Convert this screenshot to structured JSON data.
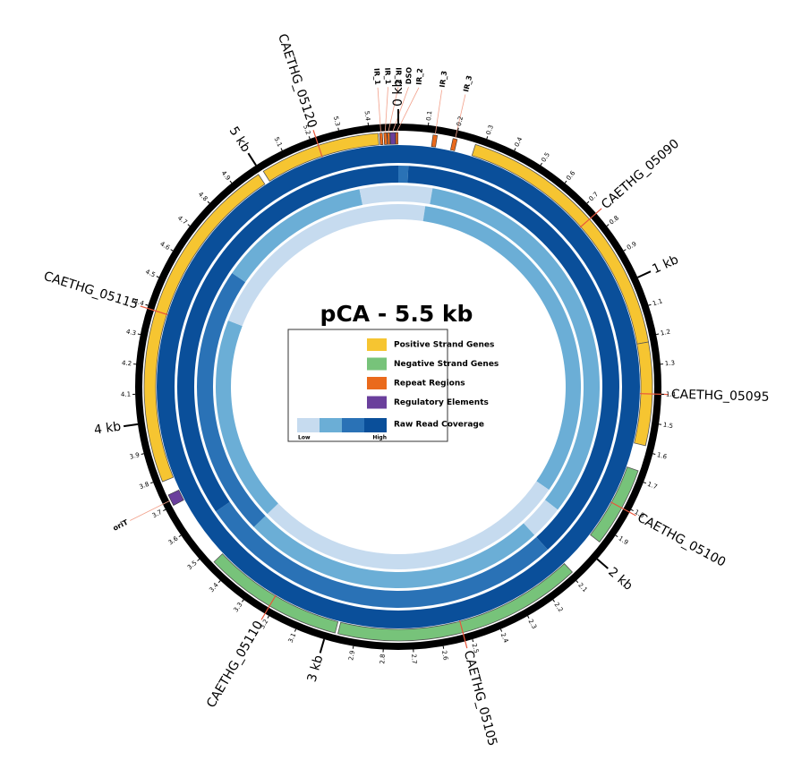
{
  "chart_data": {
    "type": "circular",
    "title": "pCA - 5.5 kb",
    "xlim": [
      0,
      5.5
    ],
    "major_ticks": [
      {
        "value": 0,
        "label": "0 kb"
      },
      {
        "value": 1,
        "label": "1 kb"
      },
      {
        "value": 2,
        "label": "2 kb"
      },
      {
        "value": 3,
        "label": "3 kb"
      },
      {
        "value": 4,
        "label": "4 kb"
      },
      {
        "value": 5,
        "label": "5 kb"
      }
    ],
    "minor_ticks": [
      0.1,
      0.2,
      0.3,
      0.4,
      0.5,
      0.6,
      0.7,
      0.8,
      0.9,
      1.1,
      1.2,
      1.3,
      1.4,
      1.5,
      1.6,
      1.7,
      1.8,
      1.9,
      2.1,
      2.2,
      2.3,
      2.4,
      2.5,
      2.6,
      2.7,
      2.8,
      2.9,
      3.1,
      3.2,
      3.3,
      3.4,
      3.5,
      3.6,
      3.7,
      3.8,
      3.9,
      4.1,
      4.2,
      4.3,
      4.4,
      4.5,
      4.6,
      4.7,
      4.8,
      4.9,
      5.1,
      5.2,
      5.3,
      5.4
    ],
    "colors": {
      "positive": "#f6c531",
      "negative": "#77c37a",
      "repeat": "#ea6a1c",
      "regulatory": "#6a3f9c",
      "coverage": [
        "#c6dbef",
        "#6baed6",
        "#2a72b6",
        "#0a4f9a"
      ]
    },
    "genes": [
      {
        "name": "CAETHG_05090",
        "start": 0.27,
        "end": 1.22,
        "strand": "positive"
      },
      {
        "name": "CAETHG_05095",
        "start": 1.22,
        "end": 1.58,
        "strand": "positive"
      },
      {
        "name": "CAETHG_05100",
        "start": 1.67,
        "end": 1.95,
        "strand": "negative"
      },
      {
        "name": "CAETHG_05105",
        "start": 2.09,
        "end": 2.96,
        "strand": "negative"
      },
      {
        "name": "CAETHG_05110",
        "start": 2.97,
        "end": 3.46,
        "strand": "negative"
      },
      {
        "name": "CAETHG_05115",
        "start": 3.79,
        "end": 4.99,
        "strand": "positive"
      },
      {
        "name": "CAETHG_05120",
        "start": 5.01,
        "end": 5.43,
        "strand": "positive"
      }
    ],
    "features": [
      {
        "name": "IR_1",
        "start": 5.435,
        "end": 5.445,
        "kind": "repeat"
      },
      {
        "name": "IR_1",
        "start": 5.45,
        "end": 5.46,
        "kind": "repeat"
      },
      {
        "name": "IR_2",
        "start": 5.462,
        "end": 5.47,
        "kind": "repeat"
      },
      {
        "name": "DSO",
        "start": 5.472,
        "end": 5.49,
        "kind": "regulatory"
      },
      {
        "name": "IR_2",
        "start": 5.491,
        "end": 5.499,
        "kind": "repeat"
      },
      {
        "name": "IR_3",
        "start": 0.12,
        "end": 0.135,
        "kind": "repeat"
      },
      {
        "name": "IR_3",
        "start": 0.19,
        "end": 0.205,
        "kind": "repeat"
      },
      {
        "name": "oriT",
        "start": 3.7,
        "end": 3.74,
        "kind": "regulatory"
      }
    ],
    "coverage": [
      {
        "segments": [
          {
            "start": 0,
            "end": 2.75,
            "level": 3
          },
          {
            "start": 2.75,
            "end": 5.5,
            "level": 3
          }
        ]
      },
      {
        "segments": [
          {
            "start": 0,
            "end": 0.04,
            "level": 2
          },
          {
            "start": 0.04,
            "end": 2.1,
            "level": 3
          },
          {
            "start": 2.1,
            "end": 3.6,
            "level": 2
          },
          {
            "start": 3.6,
            "end": 5.5,
            "level": 3
          }
        ]
      },
      {
        "segments": [
          {
            "start": 0,
            "end": 0.15,
            "level": 0
          },
          {
            "start": 0.15,
            "end": 1.95,
            "level": 1
          },
          {
            "start": 1.95,
            "end": 2.1,
            "level": 0
          },
          {
            "start": 2.1,
            "end": 3.45,
            "level": 1
          },
          {
            "start": 3.45,
            "end": 4.65,
            "level": 2
          },
          {
            "start": 4.65,
            "end": 5.33,
            "level": 1
          },
          {
            "start": 5.33,
            "end": 5.5,
            "level": 0
          }
        ]
      },
      {
        "segments": [
          {
            "start": 0,
            "end": 0.13,
            "level": 0
          },
          {
            "start": 0.13,
            "end": 1.9,
            "level": 1
          },
          {
            "start": 1.9,
            "end": 3.45,
            "level": 0
          },
          {
            "start": 3.45,
            "end": 4.45,
            "level": 1
          },
          {
            "start": 4.45,
            "end": 5.5,
            "level": 0
          }
        ]
      }
    ],
    "legend": {
      "items": [
        {
          "label": "Positive Strand Genes",
          "key": "positive"
        },
        {
          "label": "Negative Strand Genes",
          "key": "negative"
        },
        {
          "label": "Repeat Regions",
          "key": "repeat"
        },
        {
          "label": "Regulatory Elements",
          "key": "regulatory"
        }
      ],
      "coverage_label": "Raw Read Coverage",
      "low": "Low",
      "high": "High"
    }
  }
}
